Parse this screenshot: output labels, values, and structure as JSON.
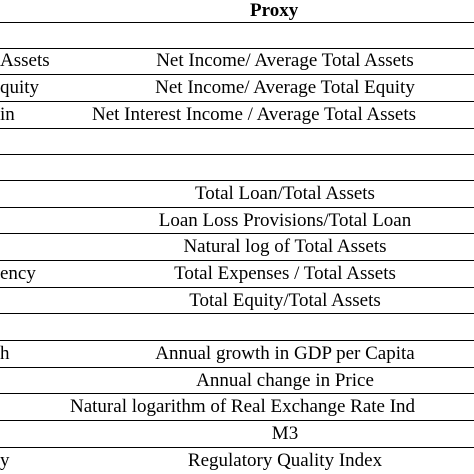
{
  "header": {
    "proxy_label": "Proxy"
  },
  "rows": [
    {
      "left": "Assets",
      "proxy": "Net Income/ Average Total Assets"
    },
    {
      "left": "quity",
      "proxy": "Net Income/ Average Total Equity"
    },
    {
      "left": "in",
      "proxy": "Net Interest Income / Average Total Assets"
    },
    {
      "left": "",
      "proxy": ""
    },
    {
      "left": "",
      "proxy": ""
    },
    {
      "left": "",
      "proxy": "Total Loan/Total Assets"
    },
    {
      "left": "",
      "proxy": "Loan Loss Provisions/Total Loan"
    },
    {
      "left": "",
      "proxy": "Natural log of Total Assets"
    },
    {
      "left": "ency",
      "proxy": "Total Expenses / Total Assets"
    },
    {
      "left": "",
      "proxy": "Total Equity/Total Assets"
    },
    {
      "left": "",
      "proxy": ""
    },
    {
      "left": "h",
      "proxy": "Annual growth in GDP per Capita"
    },
    {
      "left": "",
      "proxy": "Annual change in Price"
    },
    {
      "left": "",
      "proxy": "Natural logarithm of Real Exchange Rate Ind"
    },
    {
      "left": "",
      "proxy": "M3"
    },
    {
      "left": "y",
      "proxy": "Regulatory Quality Index"
    }
  ]
}
